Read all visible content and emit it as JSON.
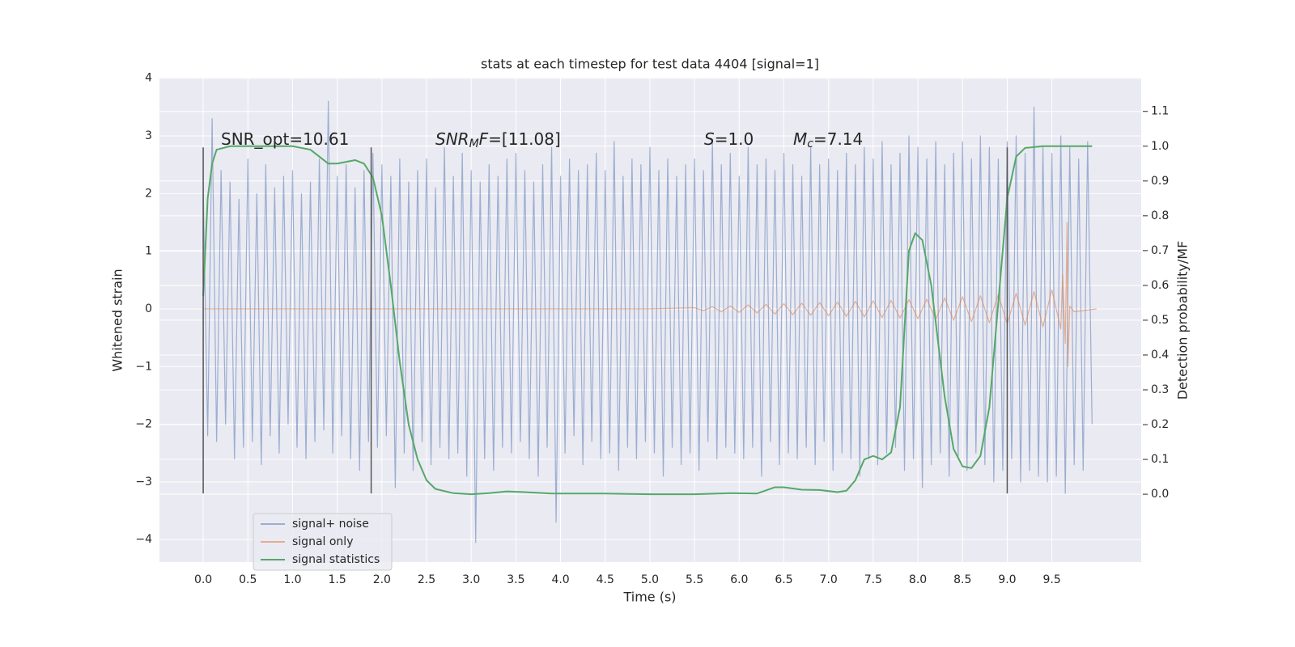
{
  "chart_data": {
    "type": "line",
    "title": "stats at each timestep for test data 4404 [signal=1]",
    "xlabel": "Time (s)",
    "ylabel": "Whitened strain",
    "y2label": "Detection probability/MF",
    "xlim": [
      -0.49,
      10.5
    ],
    "ylim": [
      -4.39,
      4.01
    ],
    "y2lim": [
      -0.195,
      1.197
    ],
    "xticks": [
      {
        "value": 0,
        "label": "0.0"
      },
      {
        "value": 0.5,
        "label": "0.5"
      },
      {
        "value": 1,
        "label": "1.0"
      },
      {
        "value": 1.5,
        "label": "1.5"
      },
      {
        "value": 2,
        "label": "2.0"
      },
      {
        "value": 2.5,
        "label": "2.5"
      },
      {
        "value": 3,
        "label": "3.0"
      },
      {
        "value": 3.5,
        "label": "3.5"
      },
      {
        "value": 4,
        "label": "4.0"
      },
      {
        "value": 4.5,
        "label": "4.5"
      },
      {
        "value": 5,
        "label": "5.0"
      },
      {
        "value": 5.5,
        "label": "5.5"
      },
      {
        "value": 6,
        "label": "6.0"
      },
      {
        "value": 6.5,
        "label": "6.5"
      },
      {
        "value": 7,
        "label": "7.0"
      },
      {
        "value": 7.5,
        "label": "7.5"
      },
      {
        "value": 8,
        "label": "8.0"
      },
      {
        "value": 8.5,
        "label": "8.5"
      },
      {
        "value": 9,
        "label": "9.0"
      },
      {
        "value": 9.5,
        "label": "9.5"
      }
    ],
    "yticks": [
      {
        "value": -4,
        "label": "−4"
      },
      {
        "value": -3,
        "label": "−3"
      },
      {
        "value": -2,
        "label": "−2"
      },
      {
        "value": -1,
        "label": "−1"
      },
      0,
      1,
      2,
      3,
      4
    ],
    "y2ticks": [
      {
        "value": 0,
        "label": "0.0"
      },
      {
        "value": 0.1,
        "label": "0.1"
      },
      {
        "value": 0.2,
        "label": "0.2"
      },
      {
        "value": 0.3,
        "label": "0.3"
      },
      {
        "value": 0.4,
        "label": "0.4"
      },
      {
        "value": 0.5,
        "label": "0.5"
      },
      {
        "value": 0.6,
        "label": "0.6"
      },
      {
        "value": 0.7,
        "label": "0.7"
      },
      {
        "value": 0.8,
        "label": "0.8"
      },
      {
        "value": 0.9,
        "label": "0.9"
      },
      {
        "value": 1,
        "label": "1.0"
      },
      {
        "value": 1.1,
        "label": "1.1"
      }
    ],
    "grid": true,
    "legend": "lower left",
    "annotations": [
      {
        "parts": [
          "SNR_opt=10.61"
        ]
      },
      {
        "parts": [
          "SNR",
          "M",
          "F",
          "=[11.08]"
        ]
      },
      {
        "parts": [
          "S",
          "=1.0"
        ]
      },
      {
        "parts": [
          "M",
          "c",
          "=7.14"
        ]
      }
    ],
    "vlines": {
      "x": [
        0,
        1.88,
        9.0
      ],
      "ymin": -3.2,
      "ymax": 2.8,
      "color": "#555555"
    },
    "series": [
      {
        "name": "signal+ noise",
        "color": "#4c72b0",
        "opacity": 0.5,
        "x": [
          0,
          0.05,
          0.1,
          0.15,
          0.2,
          0.25,
          0.3,
          0.35,
          0.4,
          0.45,
          0.5,
          0.55,
          0.6,
          0.65,
          0.7,
          0.75,
          0.8,
          0.85,
          0.9,
          0.95,
          1,
          1.05,
          1.1,
          1.15,
          1.2,
          1.25,
          1.3,
          1.35,
          1.4,
          1.45,
          1.5,
          1.55,
          1.6,
          1.65,
          1.7,
          1.75,
          1.8,
          1.85,
          1.9,
          1.95,
          2,
          2.05,
          2.1,
          2.15,
          2.2,
          2.25,
          2.3,
          2.35,
          2.4,
          2.45,
          2.5,
          2.55,
          2.6,
          2.65,
          2.7,
          2.75,
          2.8,
          2.85,
          2.9,
          2.95,
          3,
          3.05,
          3.1,
          3.15,
          3.2,
          3.25,
          3.3,
          3.35,
          3.4,
          3.45,
          3.5,
          3.55,
          3.6,
          3.65,
          3.7,
          3.75,
          3.8,
          3.85,
          3.9,
          3.95,
          4,
          4.05,
          4.1,
          4.15,
          4.2,
          4.25,
          4.3,
          4.35,
          4.4,
          4.45,
          4.5,
          4.55,
          4.6,
          4.65,
          4.7,
          4.75,
          4.8,
          4.85,
          4.9,
          4.95,
          5,
          5.05,
          5.1,
          5.15,
          5.2,
          5.25,
          5.3,
          5.35,
          5.4,
          5.45,
          5.5,
          5.55,
          5.6,
          5.65,
          5.7,
          5.75,
          5.8,
          5.85,
          5.9,
          5.95,
          6,
          6.05,
          6.1,
          6.15,
          6.2,
          6.25,
          6.3,
          6.35,
          6.4,
          6.45,
          6.5,
          6.55,
          6.6,
          6.65,
          6.7,
          6.75,
          6.8,
          6.85,
          6.9,
          6.95,
          7,
          7.05,
          7.1,
          7.15,
          7.2,
          7.25,
          7.3,
          7.35,
          7.4,
          7.45,
          7.5,
          7.55,
          7.6,
          7.65,
          7.7,
          7.75,
          7.8,
          7.85,
          7.9,
          7.95,
          8,
          8.05,
          8.1,
          8.15,
          8.2,
          8.25,
          8.3,
          8.35,
          8.4,
          8.45,
          8.5,
          8.55,
          8.6,
          8.65,
          8.7,
          8.75,
          8.8,
          8.85,
          8.9,
          8.95,
          9,
          9.05,
          9.1,
          9.15,
          9.2,
          9.25,
          9.3,
          9.35,
          9.4,
          9.45,
          9.5,
          9.55,
          9.6,
          9.65,
          9.7,
          9.75,
          9.8,
          9.85,
          9.9,
          9.95
        ],
        "values": [
          2.1,
          -2.2,
          3.3,
          -2.3,
          2.4,
          -2.0,
          2.2,
          -2.6,
          1.9,
          -2.4,
          2.6,
          -2.3,
          2.0,
          -2.7,
          2.5,
          -2.2,
          2.1,
          -2.5,
          2.3,
          -2.0,
          2.4,
          -2.4,
          2.0,
          -2.6,
          2.2,
          -2.3,
          2.6,
          -2.1,
          3.6,
          -2.5,
          2.3,
          -2.2,
          2.5,
          -2.6,
          2.1,
          -2.8,
          2.4,
          -2.3,
          2.7,
          -2.4,
          2.5,
          -2.2,
          2.3,
          -3.1,
          2.6,
          -2.5,
          2.2,
          -2.8,
          2.4,
          -2.3,
          2.6,
          -2.7,
          2.1,
          -2.4,
          2.8,
          -2.6,
          2.3,
          -2.5,
          2.7,
          -2.9,
          2.4,
          -4.05,
          2.2,
          -2.6,
          2.5,
          -2.8,
          2.3,
          -2.4,
          2.6,
          -2.5,
          2.7,
          -2.3,
          2.4,
          -2.6,
          2.2,
          -2.9,
          2.5,
          -2.4,
          2.8,
          -3.7,
          2.3,
          -2.5,
          2.6,
          -2.2,
          2.4,
          -2.7,
          2.5,
          -2.3,
          2.7,
          -2.6,
          2.4,
          -2.5,
          2.9,
          -2.8,
          2.3,
          -2.4,
          2.6,
          -2.6,
          2.5,
          -2.3,
          2.8,
          -2.5,
          2.4,
          -2.9,
          2.6,
          -2.4,
          2.3,
          -2.7,
          2.5,
          -2.5,
          2.6,
          -2.8,
          2.4,
          -2.3,
          2.9,
          -2.6,
          2.5,
          -2.4,
          2.7,
          -2.5,
          2.3,
          -2.6,
          2.8,
          -2.4,
          2.5,
          -2.9,
          2.6,
          -2.3,
          2.4,
          -2.7,
          2.7,
          -2.5,
          2.5,
          -2.6,
          2.3,
          -2.4,
          2.8,
          -2.7,
          2.5,
          -2.3,
          2.6,
          -2.8,
          2.4,
          -2.5,
          2.7,
          -2.6,
          2.5,
          -2.9,
          2.8,
          -2.6,
          2.6,
          -2.7,
          2.9,
          -2.5,
          2.5,
          -2.4,
          2.7,
          -2.8,
          3.0,
          -2.6,
          2.8,
          -3.1,
          2.6,
          -2.7,
          2.9,
          -2.5,
          2.5,
          -2.9,
          2.7,
          -2.6,
          2.9,
          -2.8,
          2.6,
          -2.5,
          3.0,
          -2.7,
          2.8,
          -3.0,
          2.6,
          -2.8,
          2.9,
          -2.6,
          3.0,
          -3.0,
          2.7,
          -2.8,
          3.5,
          -2.9,
          2.8,
          -3.0,
          2.7,
          -2.9,
          3.0,
          -3.2,
          2.8,
          -2.7,
          2.6,
          -2.8,
          2.9,
          -2.0
        ]
      },
      {
        "name": "signal only",
        "color": "#dd8452",
        "opacity": 0.6,
        "x": [
          0,
          5.0,
          5.5,
          5.6,
          5.7,
          5.8,
          5.9,
          6.0,
          6.1,
          6.2,
          6.3,
          6.4,
          6.5,
          6.6,
          6.7,
          6.8,
          6.9,
          7.0,
          7.1,
          7.2,
          7.3,
          7.4,
          7.5,
          7.6,
          7.7,
          7.8,
          7.9,
          8.0,
          8.1,
          8.2,
          8.3,
          8.4,
          8.5,
          8.6,
          8.7,
          8.8,
          8.9,
          9.0,
          9.1,
          9.2,
          9.3,
          9.4,
          9.5,
          9.6,
          9.62,
          9.65,
          9.67,
          9.68,
          9.7,
          9.75,
          10.0
        ],
        "values": [
          0,
          0,
          0.02,
          -0.03,
          0.04,
          -0.05,
          0.05,
          -0.06,
          0.07,
          -0.07,
          0.08,
          -0.09,
          0.09,
          -0.1,
          0.1,
          -0.11,
          0.11,
          -0.12,
          0.12,
          -0.13,
          0.13,
          -0.14,
          0.14,
          -0.15,
          0.15,
          -0.16,
          0.16,
          -0.17,
          0.17,
          -0.18,
          0.19,
          -0.2,
          0.21,
          -0.22,
          0.23,
          -0.24,
          0.25,
          -0.26,
          0.27,
          -0.28,
          0.3,
          -0.31,
          0.33,
          -0.35,
          0.6,
          -0.6,
          1.5,
          -1.0,
          0.05,
          -0.05,
          0
        ]
      },
      {
        "name": "signal statistics",
        "color": "#55a868",
        "axis": "y2",
        "x": [
          0,
          0.05,
          0.1,
          0.15,
          0.3,
          1.0,
          1.2,
          1.4,
          1.5,
          1.7,
          1.8,
          1.9,
          2.0,
          2.1,
          2.2,
          2.3,
          2.4,
          2.5,
          2.6,
          2.8,
          3.0,
          3.2,
          3.4,
          3.6,
          3.9,
          4.5,
          5.0,
          5.5,
          5.9,
          6.2,
          6.4,
          6.5,
          6.7,
          6.9,
          7.1,
          7.2,
          7.3,
          7.4,
          7.5,
          7.6,
          7.7,
          7.8,
          7.9,
          7.97,
          8.05,
          8.15,
          8.3,
          8.4,
          8.5,
          8.6,
          8.7,
          8.8,
          8.9,
          9.0,
          9.1,
          9.2,
          9.4,
          9.95
        ],
        "values": [
          0.57,
          0.85,
          0.95,
          0.99,
          1.0,
          1.0,
          0.99,
          0.95,
          0.95,
          0.96,
          0.95,
          0.91,
          0.8,
          0.6,
          0.38,
          0.2,
          0.1,
          0.04,
          0.015,
          0.003,
          0.0,
          0.003,
          0.008,
          0.006,
          0.002,
          0.002,
          0.0,
          0.0,
          0.003,
          0.002,
          0.02,
          0.02,
          0.013,
          0.012,
          0.006,
          0.01,
          0.04,
          0.1,
          0.11,
          0.1,
          0.12,
          0.25,
          0.7,
          0.75,
          0.73,
          0.6,
          0.28,
          0.13,
          0.08,
          0.075,
          0.11,
          0.25,
          0.55,
          0.85,
          0.97,
          0.995,
          1.0,
          1.0
        ]
      }
    ]
  }
}
